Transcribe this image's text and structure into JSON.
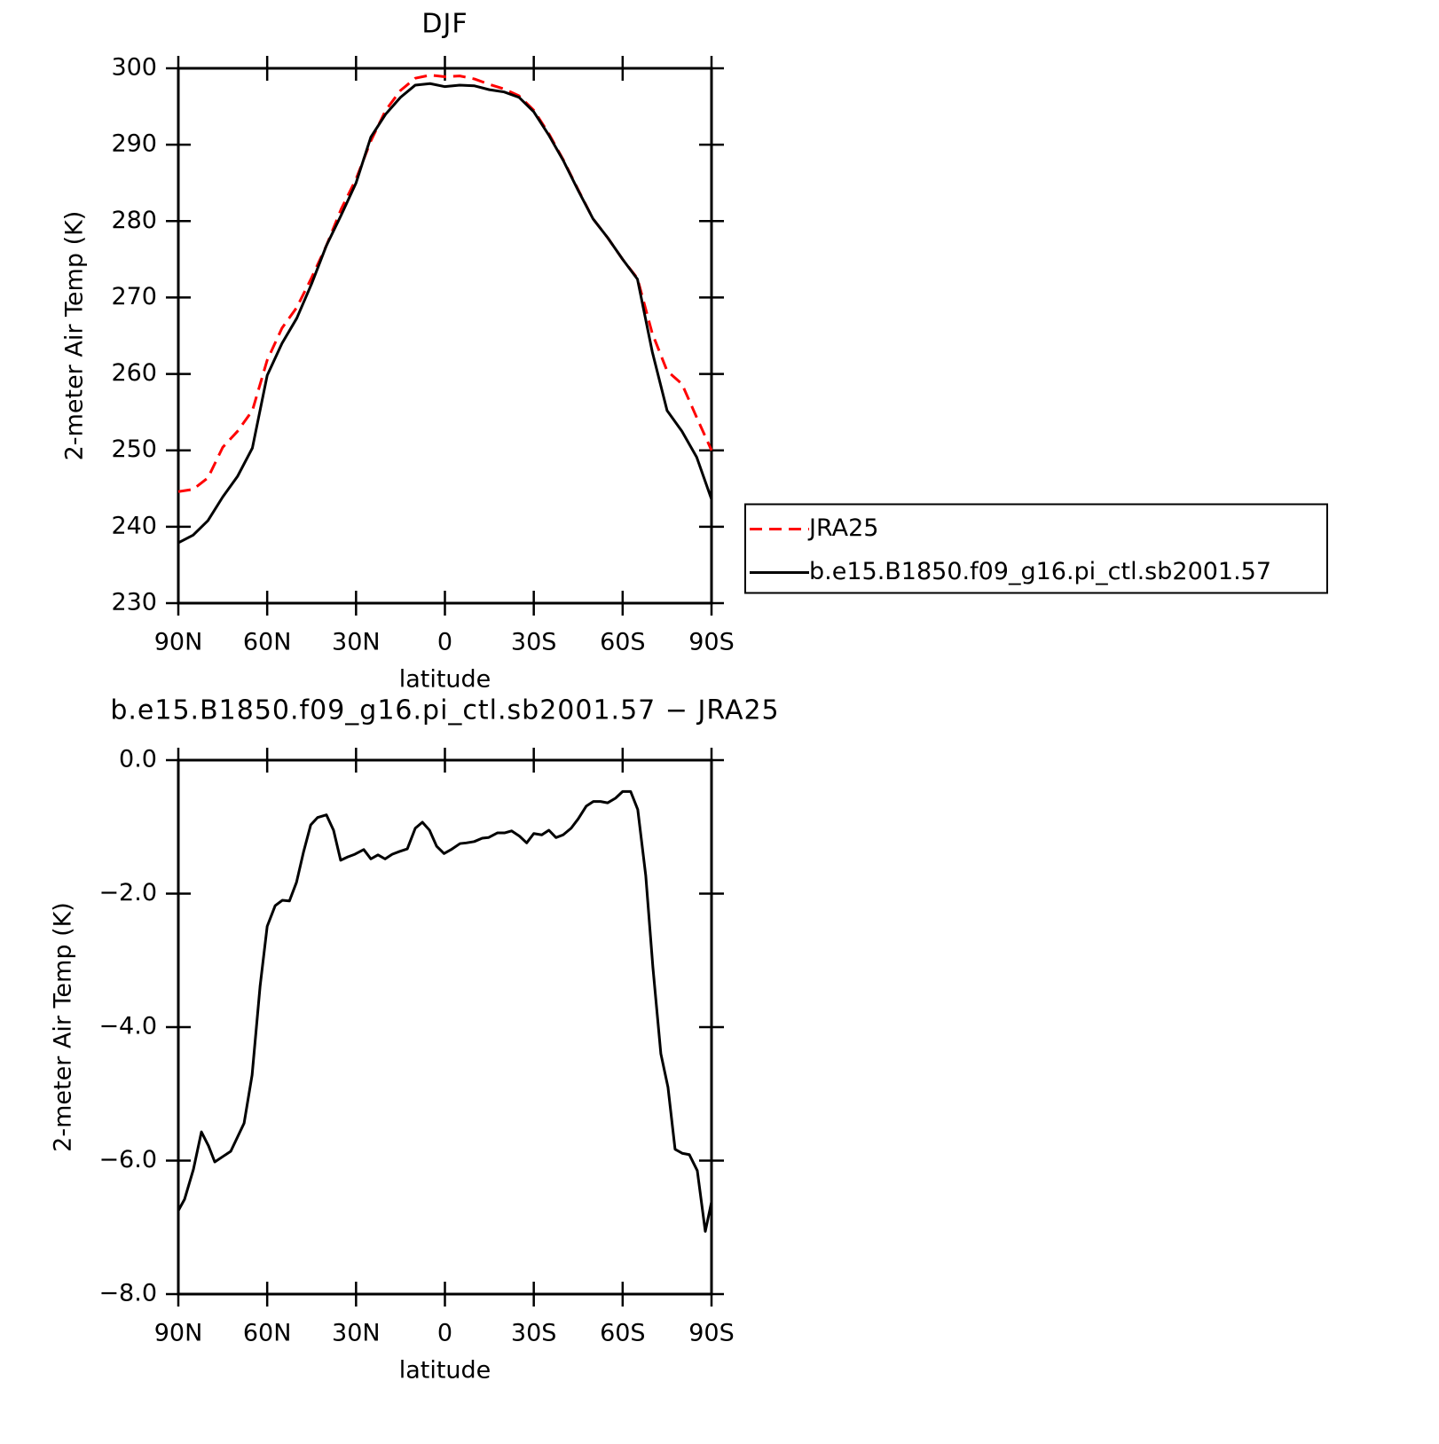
{
  "chart_data": [
    {
      "type": "line",
      "title": "DJF",
      "xlabel": "latitude",
      "ylabel": "2-meter Air Temp (K)",
      "x": [
        90,
        85,
        80,
        75,
        70,
        65,
        60,
        55,
        50,
        45,
        40,
        35,
        30,
        25,
        20,
        15,
        10,
        5,
        0,
        -5,
        -10,
        -15,
        -20,
        -25,
        -30,
        -35,
        -40,
        -45,
        -50,
        -55,
        -60,
        -65,
        -70,
        -75,
        -80,
        -85,
        -90
      ],
      "xlim": [
        90,
        -90
      ],
      "xticks": [
        {
          "value": 90,
          "label": "90N"
        },
        {
          "value": 60,
          "label": "60N"
        },
        {
          "value": 30,
          "label": "30N"
        },
        0,
        {
          "value": -30,
          "label": "30S"
        },
        {
          "value": -60,
          "label": "60S"
        },
        {
          "value": -90,
          "label": "90S"
        }
      ],
      "ylim": [
        230,
        300
      ],
      "yticks": [
        230,
        240,
        250,
        260,
        270,
        280,
        290,
        300
      ],
      "legend": "right",
      "series": [
        {
          "name": "JRA25",
          "color": "#ff0000",
          "line_style": "dashed",
          "values": [
            244.6,
            244.9,
            246.4,
            250.4,
            252.5,
            255.2,
            261.8,
            266.0,
            268.7,
            272.6,
            276.8,
            281.6,
            285.5,
            290.5,
            294.5,
            297.1,
            298.7,
            299.1,
            298.9,
            299.0,
            298.6,
            297.9,
            297.3,
            296.4,
            294.5,
            291.5,
            288.0,
            284.1,
            280.3,
            277.8,
            275.0,
            272.5,
            265.3,
            260.4,
            258.7,
            254.3,
            250.0
          ]
        },
        {
          "name": "b.e15.B1850.f09_g16.pi_ctl.sb2001.57",
          "color": "#000000",
          "line_style": "solid",
          "values": [
            237.9,
            238.9,
            240.8,
            243.9,
            246.6,
            250.3,
            259.8,
            264.0,
            267.3,
            271.8,
            276.8,
            280.8,
            285.0,
            291.0,
            294.0,
            296.2,
            297.8,
            298.0,
            297.6,
            297.8,
            297.7,
            297.2,
            296.9,
            296.2,
            294.3,
            291.3,
            287.9,
            284.0,
            280.3,
            277.8,
            275.0,
            272.4,
            262.9,
            255.2,
            252.5,
            249.1,
            243.6
          ]
        }
      ]
    },
    {
      "type": "line",
      "title": "b.e15.B1850.f09_g16.pi_ctl.sb2001.57 − JRA25",
      "xlabel": "latitude",
      "ylabel": "2-meter Air Temp (K)",
      "x": [
        90.0,
        87.9,
        84.9,
        82.2,
        79.8,
        77.7,
        72.3,
        67.8,
        65.1,
        62.4,
        60.0,
        57.3,
        54.9,
        52.5,
        50.1,
        47.7,
        45.3,
        43.0,
        40.0,
        37.6,
        35.2,
        32.8,
        30.4,
        27.4,
        25.0,
        22.6,
        20.2,
        17.8,
        15.4,
        12.7,
        10.0,
        7.6,
        5.2,
        2.8,
        0.3,
        -2.1,
        -5.1,
        -7.2,
        -9.9,
        -12.6,
        -14.7,
        -17.7,
        -20.1,
        -22.5,
        -25.2,
        -27.6,
        -30.0,
        -32.7,
        -35.1,
        -37.5,
        -39.9,
        -42.6,
        -45.0,
        -47.7,
        -50.1,
        -52.5,
        -54.9,
        -57.6,
        -60.0,
        -62.7,
        -65.1,
        -67.8,
        -70.2,
        -72.9,
        -75.3,
        -77.7,
        -80.1,
        -82.5,
        -85.2,
        -87.9,
        -90.0
      ],
      "xlim": [
        90,
        -90
      ],
      "xticks": [
        {
          "value": 90,
          "label": "90N"
        },
        {
          "value": 60,
          "label": "60N"
        },
        {
          "value": 30,
          "label": "30N"
        },
        0,
        {
          "value": -30,
          "label": "30S"
        },
        {
          "value": -60,
          "label": "60S"
        },
        {
          "value": -90,
          "label": "90S"
        }
      ],
      "ylim": [
        -8,
        0
      ],
      "yticks": [
        {
          "value": -8,
          "label": "−8.0"
        },
        {
          "value": -6,
          "label": "−6.0"
        },
        {
          "value": -4,
          "label": "−4.0"
        },
        {
          "value": -2,
          "label": "−2.0"
        },
        {
          "value": 0,
          "label": "0.0"
        }
      ],
      "series": [
        {
          "color": "#000000",
          "line_style": "solid",
          "values": [
            -6.75,
            -6.58,
            -6.13,
            -5.57,
            -5.78,
            -6.02,
            -5.86,
            -5.44,
            -4.72,
            -3.39,
            -2.49,
            -2.18,
            -2.1,
            -2.11,
            -1.83,
            -1.37,
            -0.97,
            -0.86,
            -0.82,
            -1.05,
            -1.5,
            -1.45,
            -1.41,
            -1.34,
            -1.48,
            -1.42,
            -1.48,
            -1.41,
            -1.37,
            -1.33,
            -1.02,
            -0.93,
            -1.05,
            -1.29,
            -1.4,
            -1.34,
            -1.25,
            -1.24,
            -1.22,
            -1.17,
            -1.16,
            -1.09,
            -1.09,
            -1.06,
            -1.14,
            -1.24,
            -1.1,
            -1.12,
            -1.05,
            -1.16,
            -1.12,
            -1.02,
            -0.88,
            -0.69,
            -0.62,
            -0.62,
            -0.64,
            -0.57,
            -0.47,
            -0.47,
            -0.74,
            -1.73,
            -3.1,
            -4.4,
            -4.9,
            -5.83,
            -5.89,
            -5.91,
            -6.15,
            -7.06,
            -6.62
          ]
        }
      ]
    }
  ]
}
